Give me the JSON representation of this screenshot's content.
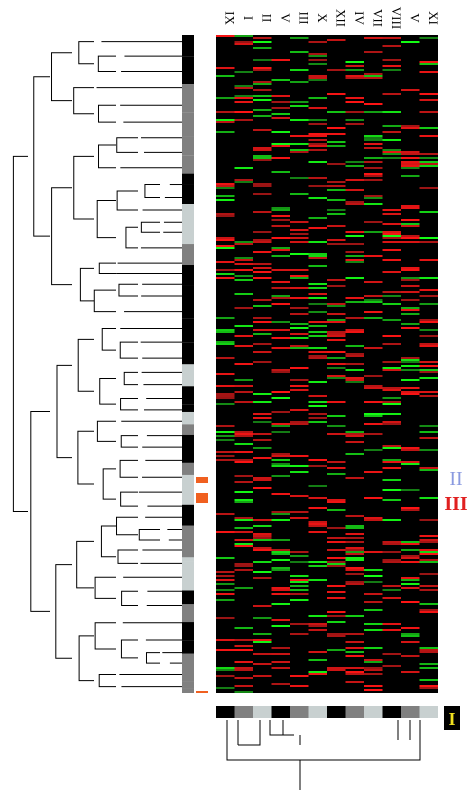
{
  "column_labels": [
    "IX",
    "I",
    "II",
    "V",
    "III",
    "X",
    "XII",
    "IV",
    "VII",
    "VIII",
    "V",
    "XI"
  ],
  "cluster_labels": [
    "II",
    "III",
    "I"
  ]
}
